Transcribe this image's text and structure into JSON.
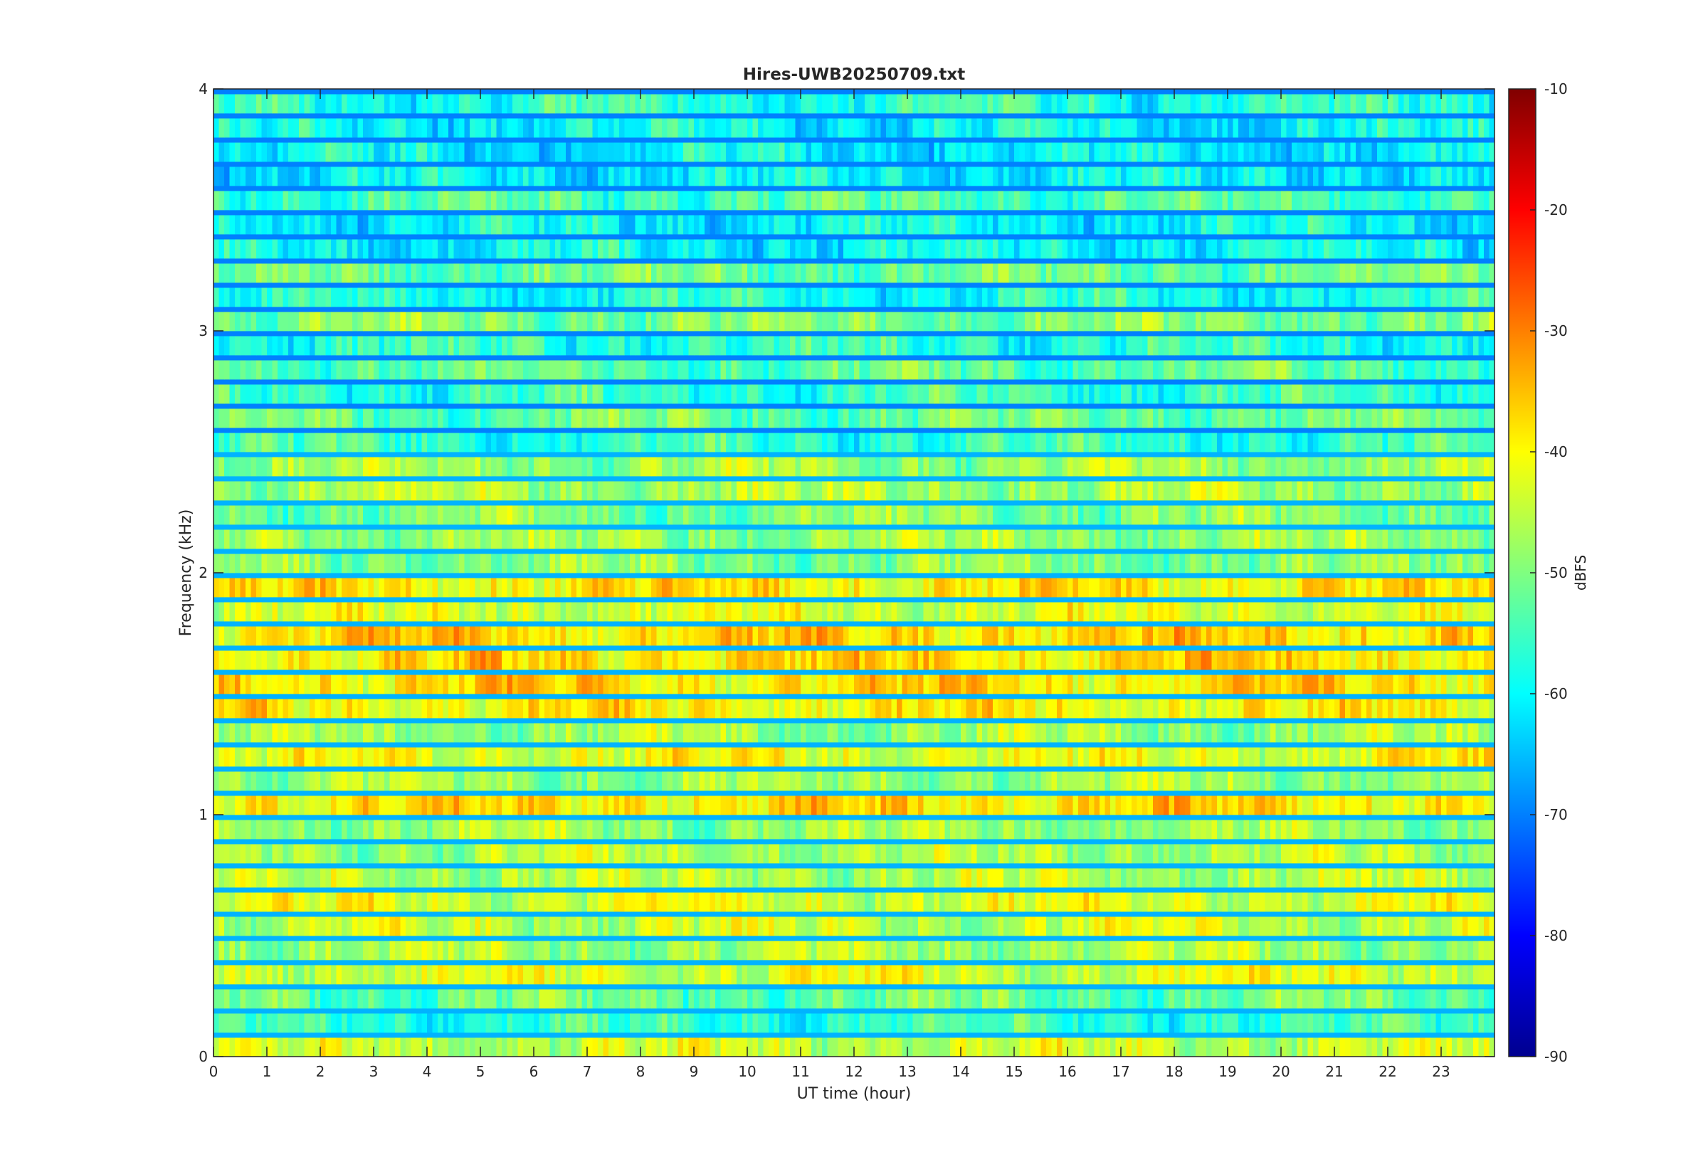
{
  "chart_data": {
    "type": "heatmap",
    "title": "Hires-UWB20250709.txt",
    "xlabel": "UT time (hour)",
    "ylabel": "Frequency (kHz)",
    "xlim": [
      0,
      24
    ],
    "ylim": [
      0,
      4
    ],
    "x_ticks": [
      0,
      1,
      2,
      3,
      4,
      5,
      6,
      7,
      8,
      9,
      10,
      11,
      12,
      13,
      14,
      15,
      16,
      17,
      18,
      19,
      20,
      21,
      22,
      23
    ],
    "y_ticks": [
      0,
      1,
      2,
      3,
      4
    ],
    "colorbar": {
      "label": "dBFS",
      "range": [
        -90,
        -10
      ],
      "ticks": [
        -90,
        -80,
        -70,
        -60,
        -50,
        -40,
        -30,
        -20,
        -10
      ],
      "colormap": "jet"
    },
    "frequency_bands": [
      {
        "f": 0.05,
        "level": -45
      },
      {
        "f": 0.15,
        "level": -56
      },
      {
        "f": 0.25,
        "level": -52
      },
      {
        "f": 0.35,
        "level": -43
      },
      {
        "f": 0.45,
        "level": -47
      },
      {
        "f": 0.55,
        "level": -45
      },
      {
        "f": 0.65,
        "level": -43
      },
      {
        "f": 0.75,
        "level": -46
      },
      {
        "f": 0.85,
        "level": -47
      },
      {
        "f": 0.95,
        "level": -48
      },
      {
        "f": 1.05,
        "level": -38
      },
      {
        "f": 1.15,
        "level": -48
      },
      {
        "f": 1.25,
        "level": -42
      },
      {
        "f": 1.35,
        "level": -48
      },
      {
        "f": 1.45,
        "level": -40
      },
      {
        "f": 1.55,
        "level": -38
      },
      {
        "f": 1.65,
        "level": -38
      },
      {
        "f": 1.75,
        "level": -37
      },
      {
        "f": 1.85,
        "level": -43
      },
      {
        "f": 1.95,
        "level": -39
      },
      {
        "f": 2.05,
        "level": -50
      },
      {
        "f": 2.15,
        "level": -48
      },
      {
        "f": 2.25,
        "level": -50
      },
      {
        "f": 2.35,
        "level": -47
      },
      {
        "f": 2.45,
        "level": -48
      },
      {
        "f": 2.55,
        "level": -56
      },
      {
        "f": 2.65,
        "level": -52
      },
      {
        "f": 2.75,
        "level": -56
      },
      {
        "f": 2.85,
        "level": -53
      },
      {
        "f": 2.95,
        "level": -57
      },
      {
        "f": 3.05,
        "level": -50
      },
      {
        "f": 3.15,
        "level": -58
      },
      {
        "f": 3.25,
        "level": -52
      },
      {
        "f": 3.35,
        "level": -60
      },
      {
        "f": 3.45,
        "level": -60
      },
      {
        "f": 3.55,
        "level": -54
      },
      {
        "f": 3.65,
        "level": -61
      },
      {
        "f": 3.75,
        "level": -61
      },
      {
        "f": 3.85,
        "level": -60
      },
      {
        "f": 3.95,
        "level": -57
      }
    ],
    "background_level": -63
  }
}
